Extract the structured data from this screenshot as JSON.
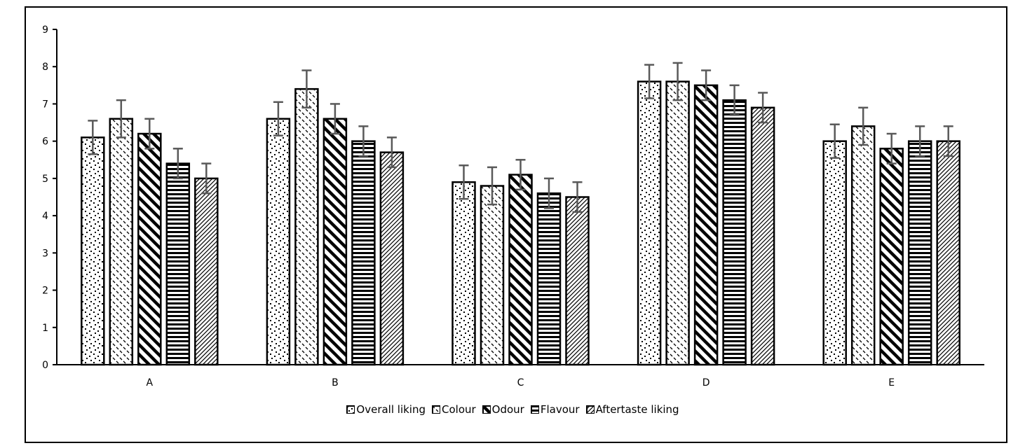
{
  "chart_data": {
    "type": "bar",
    "categories": [
      "A",
      "B",
      "C",
      "D",
      "E"
    ],
    "ylim": [
      0,
      9
    ],
    "yticks": [
      "0",
      "1",
      "2",
      "3",
      "4",
      "5",
      "6",
      "7",
      "8",
      "9"
    ],
    "title": "",
    "xlabel": "",
    "ylabel": "",
    "grid": false,
    "legend_position": "bottom",
    "series": [
      {
        "name": "Overall liking",
        "pattern": "dots",
        "values": [
          6.1,
          6.6,
          4.9,
          7.6,
          6.0
        ],
        "errors": [
          0.45,
          0.45,
          0.45,
          0.45,
          0.45
        ]
      },
      {
        "name": "Colour",
        "pattern": "dashes",
        "values": [
          6.6,
          7.4,
          4.8,
          7.6,
          6.4
        ],
        "errors": [
          0.5,
          0.5,
          0.5,
          0.5,
          0.5
        ]
      },
      {
        "name": "Odour",
        "pattern": "wide-diagonal",
        "values": [
          6.2,
          6.6,
          5.1,
          7.5,
          5.8
        ],
        "errors": [
          0.4,
          0.4,
          0.4,
          0.4,
          0.4
        ]
      },
      {
        "name": "Flavour",
        "pattern": "horizontal",
        "values": [
          5.4,
          6.0,
          4.6,
          7.1,
          6.0
        ],
        "errors": [
          0.4,
          0.4,
          0.4,
          0.4,
          0.4
        ]
      },
      {
        "name": "Aftertaste liking",
        "pattern": "light-diagonal",
        "values": [
          5.0,
          5.7,
          4.5,
          6.9,
          6.0
        ],
        "errors": [
          0.4,
          0.4,
          0.4,
          0.4,
          0.4
        ]
      }
    ]
  }
}
